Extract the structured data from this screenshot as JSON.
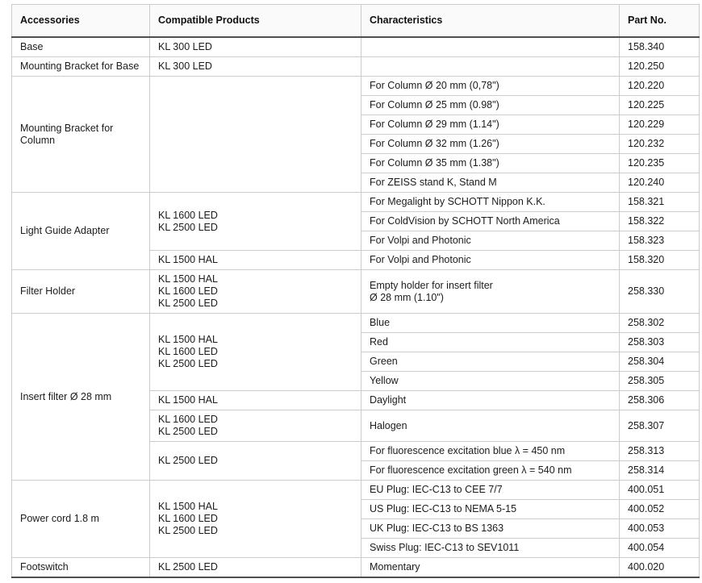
{
  "table": {
    "columns": [
      "Accessories",
      "Compatible Products",
      "Characteristics",
      "Part No."
    ],
    "groups": [
      {
        "accessory": "Base",
        "subgroups": [
          {
            "products": [
              "KL 300 LED"
            ],
            "rows": [
              {
                "characteristic": "",
                "part_no": "158.340"
              }
            ]
          }
        ]
      },
      {
        "accessory": "Mounting Bracket for Base",
        "subgroups": [
          {
            "products": [
              "KL 300 LED"
            ],
            "rows": [
              {
                "characteristic": "",
                "part_no": "120.250"
              }
            ]
          }
        ]
      },
      {
        "accessory": "Mounting Bracket for Column",
        "subgroups": [
          {
            "products": [],
            "rows": [
              {
                "characteristic": "For Column Ø 20 mm (0,78\")",
                "part_no": "120.220"
              },
              {
                "characteristic": "For Column Ø 25 mm (0.98\")",
                "part_no": "120.225"
              },
              {
                "characteristic": "For Column Ø 29 mm (1.14\")",
                "part_no": "120.229"
              },
              {
                "characteristic": "For Column Ø 32 mm (1.26\")",
                "part_no": "120.232"
              },
              {
                "characteristic": "For Column Ø 35 mm (1.38\")",
                "part_no": "120.235"
              },
              {
                "characteristic": "For ZEISS stand K, Stand M",
                "part_no": "120.240"
              }
            ]
          }
        ]
      },
      {
        "accessory": "Light Guide Adapter",
        "subgroups": [
          {
            "products": [
              "KL 1600 LED",
              "KL 2500 LED"
            ],
            "rows": [
              {
                "characteristic": "For Megalight by SCHOTT Nippon K.K.",
                "part_no": "158.321"
              },
              {
                "characteristic": "For ColdVision by SCHOTT North America",
                "part_no": "158.322"
              },
              {
                "characteristic": "For Volpi and Photonic",
                "part_no": "158.323"
              }
            ]
          },
          {
            "products": [
              "KL 1500 HAL"
            ],
            "rows": [
              {
                "characteristic": "For Volpi and Photonic",
                "part_no": "158.320"
              }
            ]
          }
        ]
      },
      {
        "accessory": "Filter Holder",
        "subgroups": [
          {
            "products": [
              "KL 1500 HAL",
              "KL 1600 LED",
              "KL 2500 LED"
            ],
            "rows": [
              {
                "characteristic": [
                  "Empty holder for insert filter",
                  "Ø 28 mm (1.10\")"
                ],
                "part_no": "258.330"
              }
            ]
          }
        ]
      },
      {
        "accessory": "Insert filter Ø 28 mm",
        "subgroups": [
          {
            "products": [
              "KL 1500 HAL",
              "KL 1600 LED",
              "KL 2500 LED"
            ],
            "rows": [
              {
                "characteristic": "Blue",
                "part_no": "258.302"
              },
              {
                "characteristic": "Red",
                "part_no": "258.303"
              },
              {
                "characteristic": "Green",
                "part_no": "258.304"
              },
              {
                "characteristic": "Yellow",
                "part_no": "258.305"
              }
            ]
          },
          {
            "products": [
              "KL 1500 HAL"
            ],
            "rows": [
              {
                "characteristic": "Daylight",
                "part_no": "258.306"
              }
            ]
          },
          {
            "products": [
              "KL 1600 LED",
              "KL 2500 LED"
            ],
            "rows": [
              {
                "characteristic": "Halogen",
                "part_no": "258.307"
              }
            ]
          },
          {
            "products": [
              "KL 2500 LED"
            ],
            "rows": [
              {
                "characteristic": "For fluorescence excitation blue λ = 450 nm",
                "part_no": "258.313"
              },
              {
                "characteristic": "For fluorescence excitation green λ = 540 nm",
                "part_no": "258.314"
              }
            ]
          }
        ]
      },
      {
        "accessory": "Power cord 1.8 m",
        "subgroups": [
          {
            "products": [
              "KL 1500 HAL",
              "KL 1600 LED",
              "KL 2500 LED"
            ],
            "rows": [
              {
                "characteristic": "EU Plug: IEC-C13 to CEE 7/7",
                "part_no": "400.051"
              },
              {
                "characteristic": "US Plug: IEC-C13 to NEMA 5-15",
                "part_no": "400.052"
              },
              {
                "characteristic": "UK Plug: IEC-C13 to BS 1363",
                "part_no": "400.053"
              },
              {
                "characteristic": "Swiss Plug: IEC-C13 to SEV1011",
                "part_no": "400.054"
              }
            ]
          }
        ]
      },
      {
        "accessory": "Footswitch",
        "subgroups": [
          {
            "products": [
              "KL 2500 LED"
            ],
            "rows": [
              {
                "characteristic": "Momentary",
                "part_no": "400.020"
              }
            ]
          }
        ]
      }
    ]
  }
}
